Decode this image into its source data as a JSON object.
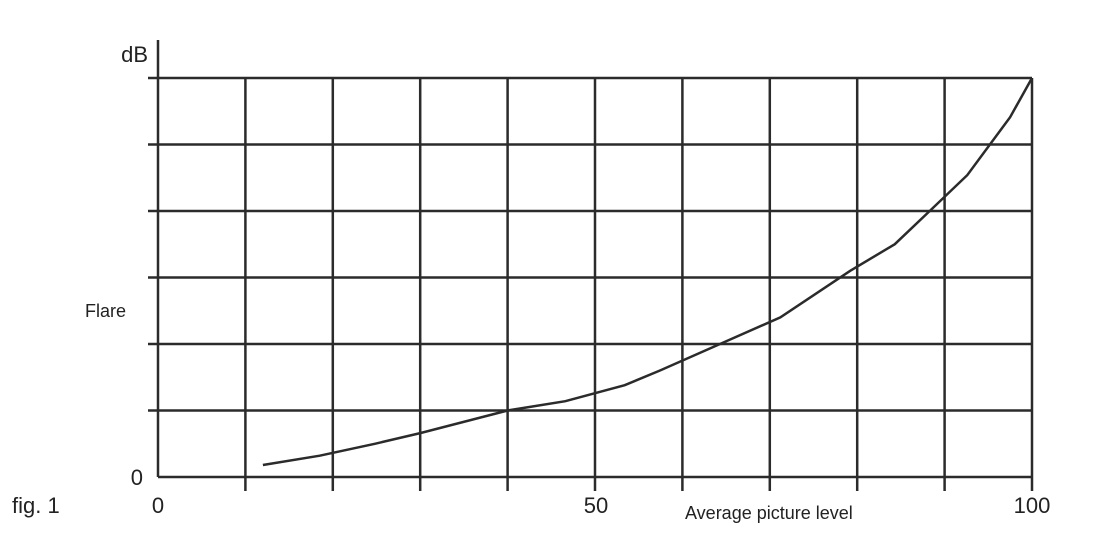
{
  "figure_label": "fig. 1",
  "chart_data": {
    "type": "line",
    "title": "",
    "xlabel": "Average picture level",
    "ylabel": "Flare",
    "yunit": "dB",
    "xlim": [
      0,
      100
    ],
    "ylim": [
      0,
      6
    ],
    "x_ticks": [
      0,
      50,
      100
    ],
    "y_ticks": [
      0
    ],
    "x_gridlines": [
      0,
      10,
      20,
      30,
      40,
      50,
      60,
      70,
      80,
      90,
      100
    ],
    "y_gridlines": [
      0,
      1,
      2,
      3,
      4,
      5,
      6
    ],
    "grid": true,
    "line_color": "#2b2b2b",
    "series": [
      {
        "x": [
          12,
          18.5,
          24.8,
          30,
          40,
          46.6,
          53.4,
          57.4,
          64.3,
          71.2,
          79.2,
          84.3,
          88.3,
          92.6,
          97.5,
          100
        ],
        "y": [
          0.18,
          0.32,
          0.5,
          0.66,
          1.0,
          1.14,
          1.38,
          1.6,
          2.0,
          2.4,
          3.1,
          3.5,
          4.0,
          4.54,
          5.41,
          6.0
        ]
      }
    ]
  }
}
